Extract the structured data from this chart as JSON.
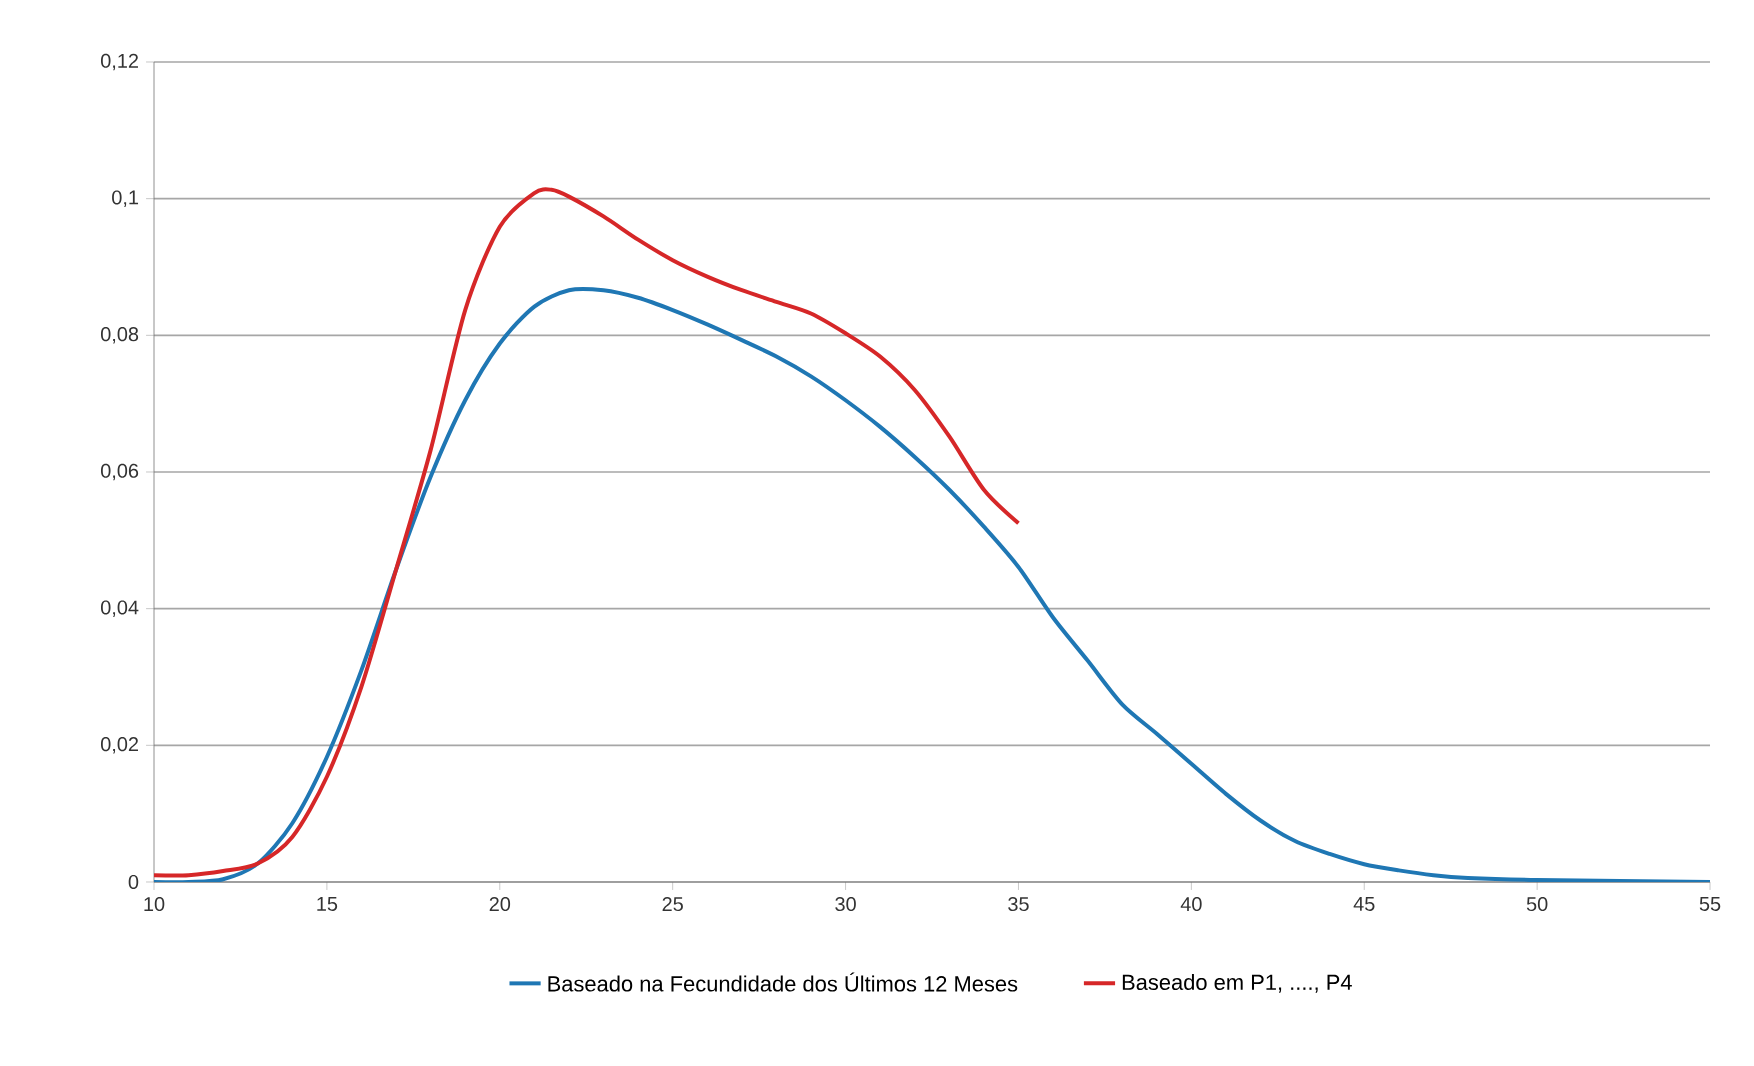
{
  "chart_data": {
    "type": "line",
    "xlim": [
      10,
      55
    ],
    "xticks": [
      10,
      15,
      20,
      25,
      30,
      35,
      40,
      45,
      50,
      55
    ],
    "ylim": [
      0,
      0.12
    ],
    "yticks": [
      {
        "value": 0,
        "label": "0"
      },
      {
        "value": 0.02,
        "label": "0,02"
      },
      {
        "value": 0.04,
        "label": "0,04"
      },
      {
        "value": 0.06,
        "label": "0,06"
      },
      {
        "value": 0.08,
        "label": "0,08"
      },
      {
        "value": 0.1,
        "label": "0,1"
      },
      {
        "value": 0.12,
        "label": "0,12"
      }
    ],
    "grid": "y",
    "legend": "bottom",
    "line_style": "solid",
    "marker": "none",
    "series": [
      {
        "name": "Baseado na Fecundidade dos Últimos 12 Meses",
        "color": "#1f77b4",
        "x": [
          10,
          11,
          12,
          13,
          14,
          15,
          16,
          17,
          18,
          19,
          20,
          21,
          22,
          23,
          24,
          25,
          26,
          27,
          28,
          29,
          30,
          31,
          32,
          33,
          34,
          35,
          36,
          37,
          38,
          39,
          40,
          41,
          42,
          43,
          44,
          45,
          46,
          47,
          48,
          50,
          55
        ],
        "values": [
          0,
          0,
          0.0004,
          0.0027,
          0.0086,
          0.0183,
          0.031,
          0.0457,
          0.0593,
          0.0705,
          0.0788,
          0.0842,
          0.0866,
          0.0866,
          0.0855,
          0.0837,
          0.0816,
          0.0793,
          0.0769,
          0.074,
          0.0705,
          0.0666,
          0.0622,
          0.0574,
          0.052,
          0.0461,
          0.0387,
          0.0324,
          0.026,
          0.0217,
          0.0173,
          0.0129,
          0.009,
          0.006,
          0.0041,
          0.0026,
          0.0017,
          0.001,
          0.0006,
          0.0003,
          0
        ]
      },
      {
        "name": "Baseado em P1, ...., P4",
        "color": "#d62728",
        "x": [
          10,
          11,
          12,
          13,
          14,
          15,
          16,
          17,
          18,
          19,
          20,
          21,
          21.5,
          22,
          23,
          24,
          25,
          26,
          27,
          28,
          29,
          30,
          31,
          32,
          33,
          34,
          35
        ],
        "values": [
          0.001,
          0.001,
          0.0016,
          0.0027,
          0.0066,
          0.0154,
          0.0286,
          0.0457,
          0.0632,
          0.0837,
          0.0959,
          0.1008,
          0.1013,
          0.1003,
          0.0974,
          0.094,
          0.091,
          0.0886,
          0.0866,
          0.0849,
          0.0832,
          0.0803,
          0.0769,
          0.072,
          0.0652,
          0.0574,
          0.0525
        ]
      }
    ]
  }
}
